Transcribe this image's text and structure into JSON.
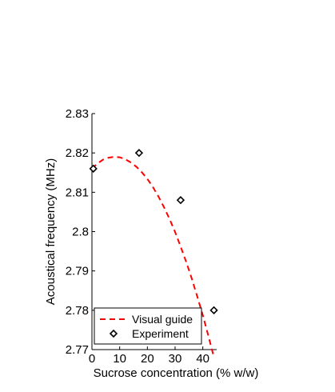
{
  "chart_data": {
    "type": "scatter",
    "xlabel": "Sucrose concentration (% w/w)",
    "ylabel": "Acoustical frequency (MHz)",
    "xlim": [
      0,
      45
    ],
    "ylim": [
      2.77,
      2.83
    ],
    "x_ticks": [
      0,
      10,
      20,
      30,
      40
    ],
    "x_tick_labels": [
      "0",
      "10",
      "20",
      "30",
      "40"
    ],
    "y_ticks": [
      2.77,
      2.78,
      2.79,
      2.8,
      2.81,
      2.82,
      2.83
    ],
    "y_tick_labels": [
      "2.77",
      "2.78",
      "2.79",
      "2.8",
      "2.81",
      "2.82",
      "2.83"
    ],
    "grid": false,
    "legend_position": "bottom-left",
    "series": [
      {
        "name": "Visual guide",
        "kind": "line",
        "style": "dashed",
        "color": "#ff0000",
        "x": [
          0,
          2,
          4,
          6,
          8,
          10,
          12,
          14,
          16,
          18,
          20,
          22,
          24,
          26,
          28,
          30,
          32,
          34,
          36,
          38,
          40,
          42,
          44
        ],
        "y": [
          2.816,
          2.8173,
          2.8183,
          2.8188,
          2.819,
          2.8189,
          2.8184,
          2.8176,
          2.8165,
          2.8151,
          2.8134,
          2.8113,
          2.8089,
          2.8062,
          2.8032,
          2.7999,
          2.7962,
          2.7923,
          2.7881,
          2.7835,
          2.7787,
          2.7735,
          2.7681
        ]
      },
      {
        "name": "Experiment",
        "kind": "markers",
        "marker": "diamond",
        "color": "#000000",
        "x": [
          0.5,
          17,
          32,
          44
        ],
        "y": [
          2.816,
          2.82,
          2.808,
          2.78
        ]
      }
    ]
  }
}
